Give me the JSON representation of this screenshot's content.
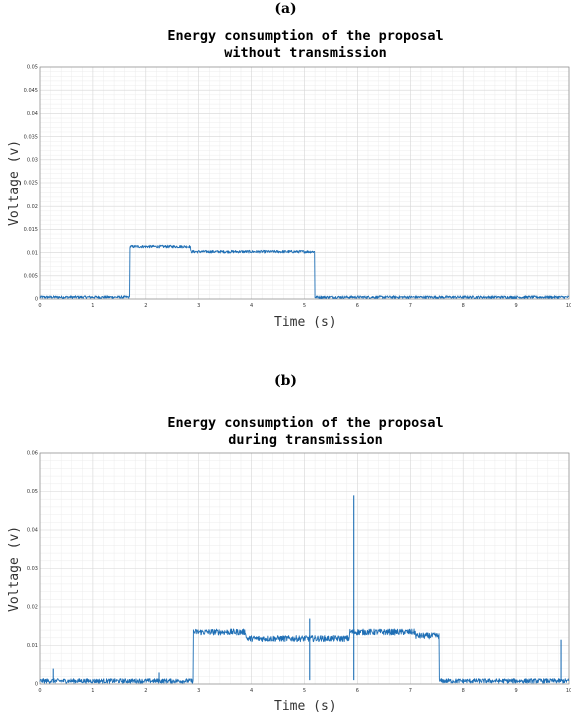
{
  "chart_data": [
    {
      "panel_label": "(a)",
      "type": "line",
      "title_line1": "Energy consumption of the proposal",
      "title_line2": "without transmission",
      "xlabel": "Time (s)",
      "ylabel": "Voltage (v)",
      "xlim": [
        0,
        10
      ],
      "ylim": [
        0,
        0.05
      ],
      "xticks": [
        0,
        1,
        2,
        3,
        4,
        5,
        6,
        7,
        8,
        9,
        10
      ],
      "yticks": [
        0,
        0.005,
        0.01,
        0.015,
        0.02,
        0.025,
        0.03,
        0.035,
        0.04,
        0.045,
        0.05
      ],
      "ytick_labels": [
        "0",
        "0.005",
        "0.01",
        "0.015",
        "0.02",
        "0.025",
        "0.03",
        "0.035",
        "0.04",
        "0.045",
        "0.05"
      ],
      "grid": true,
      "minor_grid": true,
      "series": [
        {
          "color": "#1f6fb5",
          "segments": [
            {
              "x_start": 0,
              "x_end": 1.7,
              "level": 0.0004,
              "noise": 0.0003
            },
            {
              "x_start": 1.7,
              "x_end": 2.85,
              "level": 0.0113,
              "noise": 0.0003
            },
            {
              "x_start": 2.85,
              "x_end": 5.2,
              "level": 0.0102,
              "noise": 0.0003
            },
            {
              "x_start": 5.2,
              "x_end": 10,
              "level": 0.0004,
              "noise": 0.0003
            }
          ]
        }
      ]
    },
    {
      "panel_label": "(b)",
      "type": "line",
      "title_line1": "Energy consumption of the proposal",
      "title_line2": "during transmission",
      "xlabel": "Time (s)",
      "ylabel": "Voltage (v)",
      "xlim": [
        0,
        10
      ],
      "ylim": [
        0,
        0.06
      ],
      "xticks": [
        0,
        1,
        2,
        3,
        4,
        5,
        6,
        7,
        8,
        9,
        10
      ],
      "yticks": [
        0,
        0.01,
        0.02,
        0.03,
        0.04,
        0.05,
        0.06
      ],
      "ytick_labels": [
        "0",
        "0.01",
        "0.02",
        "0.03",
        "0.04",
        "0.05",
        "0.06"
      ],
      "grid": true,
      "minor_grid": true,
      "series": [
        {
          "color": "#1f6fb5",
          "segments": [
            {
              "x_start": 0,
              "x_end": 2.9,
              "level": 0.0008,
              "noise": 0.0006
            },
            {
              "x_start": 2.9,
              "x_end": 3.9,
              "level": 0.0135,
              "noise": 0.0008
            },
            {
              "x_start": 3.9,
              "x_end": 5.85,
              "level": 0.0118,
              "noise": 0.0008
            },
            {
              "x_start": 5.85,
              "x_end": 7.1,
              "level": 0.0135,
              "noise": 0.0008
            },
            {
              "x_start": 7.1,
              "x_end": 7.55,
              "level": 0.0125,
              "noise": 0.0008
            },
            {
              "x_start": 7.55,
              "x_end": 10,
              "level": 0.0008,
              "noise": 0.0006
            }
          ],
          "spikes": [
            {
              "x": 0.25,
              "y": 0.004
            },
            {
              "x": 2.25,
              "y": 0.003
            },
            {
              "x": 5.1,
              "y": 0.017
            },
            {
              "x": 5.93,
              "y": 0.049
            },
            {
              "x": 9.85,
              "y": 0.0115
            }
          ]
        }
      ]
    }
  ]
}
